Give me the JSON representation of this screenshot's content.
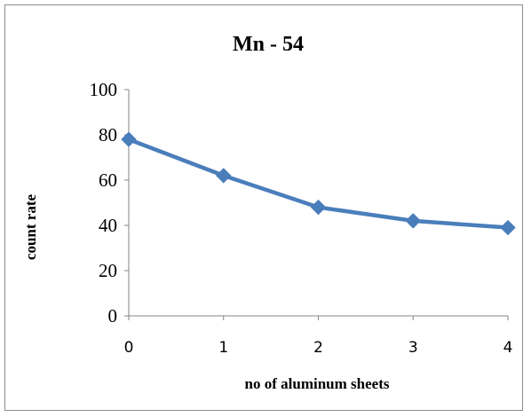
{
  "chart_data": {
    "type": "line",
    "title": "Mn - 54",
    "xlabel": "no of aluminum sheets",
    "ylabel": "count rate",
    "x": [
      0,
      1,
      2,
      3,
      4
    ],
    "series": [
      {
        "values": [
          78,
          62,
          48,
          42,
          39
        ],
        "color": "#4a7ebb",
        "marker": "diamond"
      }
    ],
    "xlim": [
      0,
      4
    ],
    "ylim": [
      0,
      100
    ],
    "yticks": [
      0,
      20,
      40,
      60,
      80,
      100
    ],
    "xticks": [
      0,
      1,
      2,
      3,
      4
    ],
    "grid": false,
    "legend": "none"
  }
}
